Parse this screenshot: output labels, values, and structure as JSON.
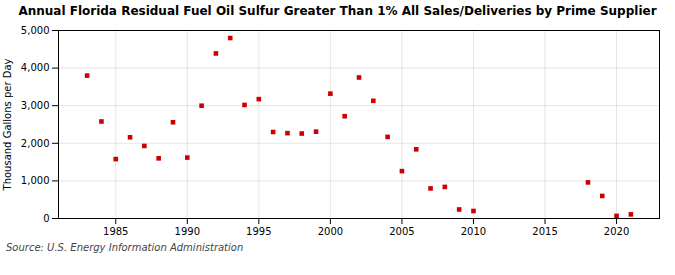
{
  "chart_data": {
    "type": "scatter",
    "title": "Annual Florida Residual Fuel Oil Sulfur Greater Than 1% All Sales/Deliveries by Prime Supplier",
    "y_label": "Thousand Gallons per Day",
    "annotations": [
      "Source: U.S. Energy Information Administration"
    ],
    "x": [
      1983,
      1984,
      1985,
      1986,
      1987,
      1988,
      1989,
      1990,
      1991,
      1992,
      1993,
      1994,
      1995,
      1996,
      1997,
      1998,
      1999,
      2000,
      2001,
      2002,
      2003,
      2004,
      2005,
      2006,
      2007,
      2008,
      2009,
      2010,
      2018,
      2019,
      2020,
      2021
    ],
    "values": [
      3800,
      2580,
      1580,
      2160,
      1930,
      1600,
      2560,
      1620,
      3000,
      4390,
      4800,
      3020,
      3175,
      2300,
      2270,
      2260,
      2310,
      3320,
      2720,
      3750,
      3130,
      2170,
      1260,
      1840,
      800,
      840,
      240,
      200,
      960,
      600,
      70,
      110
    ],
    "color": "#cc0000",
    "marker": "square",
    "xlim": [
      1981,
      2023
    ],
    "ylim": [
      0,
      5000
    ],
    "xticks": [
      1985,
      1990,
      1995,
      2000,
      2005,
      2010,
      2015,
      2020
    ],
    "yticks": [
      0,
      {
        "value": 1000,
        "label": "1,000"
      },
      {
        "value": 2000,
        "label": "2,000"
      },
      {
        "value": 3000,
        "label": "3,000"
      },
      {
        "value": 4000,
        "label": "4,000"
      },
      {
        "value": 5000,
        "label": "5,000"
      }
    ],
    "grid": true
  }
}
